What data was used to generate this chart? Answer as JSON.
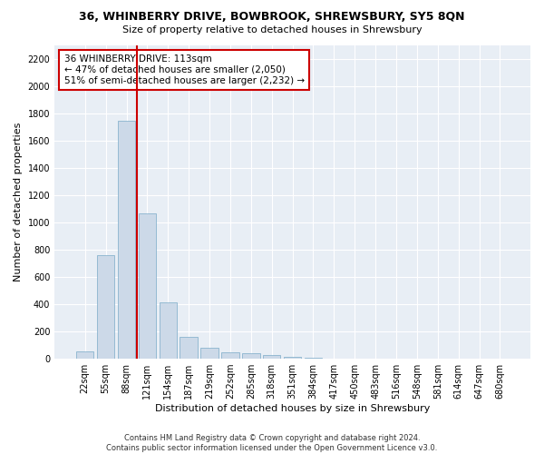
{
  "title": "36, WHINBERRY DRIVE, BOWBROOK, SHREWSBURY, SY5 8QN",
  "subtitle": "Size of property relative to detached houses in Shrewsbury",
  "xlabel": "Distribution of detached houses by size in Shrewsbury",
  "ylabel": "Number of detached properties",
  "bar_color": "#ccd9e8",
  "bar_edge_color": "#7aaac8",
  "bar_categories": [
    "22sqm",
    "55sqm",
    "88sqm",
    "121sqm",
    "154sqm",
    "187sqm",
    "219sqm",
    "252sqm",
    "285sqm",
    "318sqm",
    "351sqm",
    "384sqm",
    "417sqm",
    "450sqm",
    "483sqm",
    "516sqm",
    "548sqm",
    "581sqm",
    "614sqm",
    "647sqm",
    "680sqm"
  ],
  "bar_values": [
    55,
    760,
    1745,
    1065,
    415,
    158,
    82,
    47,
    38,
    28,
    15,
    5,
    0,
    0,
    0,
    0,
    0,
    0,
    0,
    0,
    0
  ],
  "ylim": [
    0,
    2300
  ],
  "yticks": [
    0,
    200,
    400,
    600,
    800,
    1000,
    1200,
    1400,
    1600,
    1800,
    2000,
    2200
  ],
  "vline_x": 2.5,
  "annotation_title": "36 WHINBERRY DRIVE: 113sqm",
  "annotation_line1": "← 47% of detached houses are smaller (2,050)",
  "annotation_line2": "51% of semi-detached houses are larger (2,232) →",
  "footer_line1": "Contains HM Land Registry data © Crown copyright and database right 2024.",
  "footer_line2": "Contains public sector information licensed under the Open Government Licence v3.0.",
  "background_color": "#ffffff",
  "plot_bg_color": "#e8eef5",
  "grid_color": "#ffffff",
  "annotation_box_color": "#ffffff",
  "annotation_box_edge_color": "#cc0000",
  "vline_color": "#cc0000",
  "title_fontsize": 9,
  "subtitle_fontsize": 8,
  "tick_fontsize": 7,
  "ylabel_fontsize": 8,
  "xlabel_fontsize": 8,
  "footer_fontsize": 6,
  "annotation_fontsize": 7.5
}
